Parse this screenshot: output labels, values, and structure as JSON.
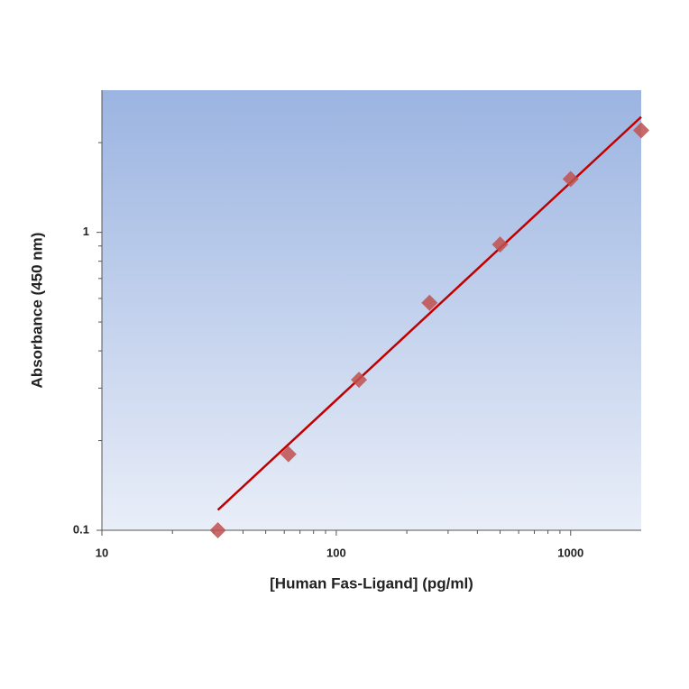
{
  "chart_data": {
    "type": "scatter",
    "x_label": "[Human Fas-Ligand] (pg/ml)",
    "y_label": "Absorbance (450 nm)",
    "log_x": true,
    "log_y": true,
    "xlim": [
      10,
      2000
    ],
    "ylim": [
      0.1,
      3
    ],
    "xticks": [
      10,
      100,
      1000
    ],
    "yticks": [
      0.1,
      1
    ],
    "xminorticks": [
      20,
      30,
      40,
      50,
      60,
      70,
      80,
      90,
      200,
      300,
      400,
      500,
      600,
      700,
      800,
      900
    ],
    "yminorticks": [
      0.2,
      0.3,
      0.4,
      0.5,
      0.6,
      0.7,
      0.8,
      0.9,
      2
    ],
    "series": [
      {
        "color": "#c0504d",
        "x": [
          31.25,
          62.5,
          125,
          250,
          500,
          1000,
          2000
        ],
        "values": [
          0.1,
          0.18,
          0.32,
          0.58,
          0.91,
          1.51,
          2.2
        ]
      }
    ],
    "fit": {
      "color": "#c00000",
      "x": [
        31.25,
        2000
      ],
      "values": [
        0.117,
        2.44
      ]
    }
  }
}
